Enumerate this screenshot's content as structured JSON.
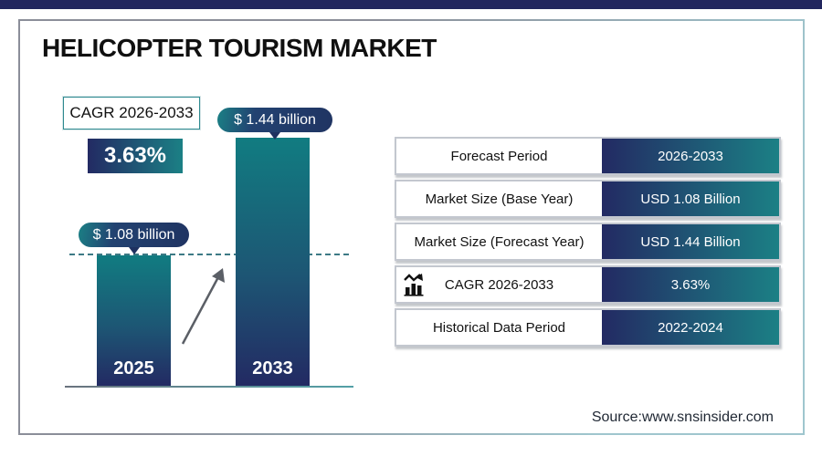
{
  "title": "HELICOPTER TOURISM MARKET",
  "source": "Source:www.snsinsider.com",
  "cagr": {
    "label": "CAGR 2026-2033",
    "value": "3.63%"
  },
  "bars": [
    {
      "year": "2025",
      "callout": "$ 1.08 billion"
    },
    {
      "year": "2033",
      "callout": "$ 1.44 billion"
    }
  ],
  "table": {
    "rows": [
      {
        "label": "Forecast Period",
        "value": "2026-2033",
        "icon": ""
      },
      {
        "label": "Market Size (Base Year)",
        "value": "USD 1.08 Billion",
        "icon": ""
      },
      {
        "label": "Market Size (Forecast Year)",
        "value": "USD 1.44 Billion",
        "icon": ""
      },
      {
        "label": "CAGR 2026-2033",
        "value": "3.63%",
        "icon": "growth-chart-icon"
      },
      {
        "label": "Historical Data Period",
        "value": "2022-2024",
        "icon": ""
      }
    ]
  },
  "colors": {
    "navy": "#232a63",
    "teal": "#1b8085",
    "accent_border": "#2f8a90",
    "top_bar": "#22265e"
  },
  "chart_data": {
    "type": "bar",
    "categories": [
      "2025",
      "2033"
    ],
    "values": [
      1.08,
      1.44
    ],
    "unit": "USD billion",
    "title": "HELICOPTER TOURISM MARKET",
    "xlabel": "",
    "ylabel": "",
    "data_labels": [
      "$ 1.08 billion",
      "$ 1.44 billion"
    ],
    "annotations": [
      "CAGR 2026-2033",
      "3.63%"
    ],
    "grid": false,
    "legend": false
  }
}
